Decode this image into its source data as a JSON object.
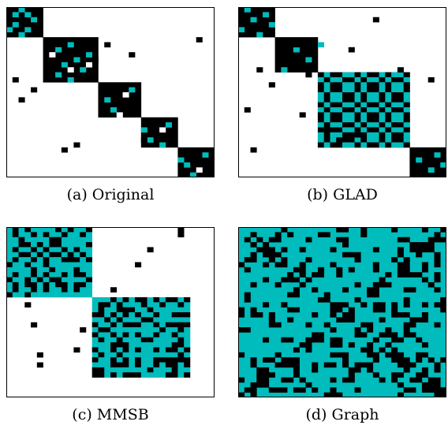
{
  "colors": {
    "filled": "#000000",
    "highlight": "#00bcbc",
    "empty": "#ffffff",
    "frame": "#000000"
  },
  "panels": [
    {
      "caption": "(a) Original",
      "cells": {
        "diag": [
          [
            0,
            6
          ],
          [
            6,
            15
          ],
          [
            15,
            22
          ],
          [
            22,
            28
          ],
          [
            28,
            34
          ]
        ],
        "cyan": [
          [
            1,
            1
          ],
          [
            3,
            1
          ],
          [
            4,
            0
          ],
          [
            1,
            3
          ],
          [
            4,
            3
          ],
          [
            2,
            4
          ],
          [
            0,
            2
          ],
          [
            5,
            2
          ],
          [
            8,
            8
          ],
          [
            11,
            9
          ],
          [
            13,
            8
          ],
          [
            10,
            11
          ],
          [
            9,
            13
          ],
          [
            12,
            12
          ],
          [
            14,
            10
          ],
          [
            7,
            10
          ],
          [
            18,
            16
          ],
          [
            20,
            17
          ],
          [
            16,
            20
          ],
          [
            24,
            22
          ],
          [
            26,
            23
          ],
          [
            23,
            26
          ],
          [
            27,
            25
          ],
          [
            30,
            28
          ],
          [
            31,
            29
          ],
          [
            33,
            30
          ],
          [
            29,
            32
          ]
        ],
        "white": [
          [
            9,
            7
          ],
          [
            12,
            10
          ],
          [
            11,
            13
          ],
          [
            17,
            19
          ],
          [
            21,
            18
          ],
          [
            24,
            25
          ],
          [
            32,
            31
          ]
        ],
        "black": [
          [
            14,
            1
          ],
          [
            18,
            2
          ],
          [
            16,
            4
          ],
          [
            28,
            9
          ],
          [
            27,
            11
          ],
          [
            10,
            14
          ],
          [
            7,
            16
          ],
          [
            9,
            20
          ],
          [
            26,
            22
          ],
          [
            25,
            24
          ],
          [
            30,
            30
          ],
          [
            6,
            31
          ]
        ]
      }
    },
    {
      "caption": "(b) GLAD",
      "cells": {
        "diag": [
          [
            0,
            6
          ],
          [
            6,
            13
          ],
          [
            13,
            28
          ],
          [
            28,
            34
          ]
        ],
        "cyan": [
          [
            0,
            1
          ],
          [
            2,
            2
          ],
          [
            4,
            0
          ],
          [
            1,
            4
          ],
          [
            5,
            3
          ],
          [
            3,
            5
          ],
          [
            8,
            9
          ],
          [
            10,
            11
          ],
          [
            12,
            7
          ],
          [
            7,
            13
          ],
          [
            30,
            29
          ],
          [
            32,
            31
          ],
          [
            29,
            32
          ],
          [
            31,
            33
          ]
        ],
        "checker": {
          "start": 13,
          "end": 28,
          "pattern": [
            1,
            0,
            1,
            1,
            0,
            0,
            1,
            0,
            1,
            1,
            0,
            1,
            0,
            0,
            1
          ]
        },
        "black": [
          [
            12,
            3
          ],
          [
            15,
            5
          ],
          [
            20,
            1
          ],
          [
            28,
            2
          ],
          [
            7,
            9
          ],
          [
            13,
            11
          ],
          [
            24,
            14
          ],
          [
            26,
            16
          ],
          [
            2,
            22
          ],
          [
            25,
            19
          ],
          [
            12,
            26
          ],
          [
            14,
            31
          ],
          [
            8,
            18
          ],
          [
            21,
            10
          ]
        ]
      }
    },
    {
      "caption": "(c) MMSB",
      "cells": {
        "blocks": [
          {
            "start": 0,
            "end": 14,
            "pattern": [
              0,
              1,
              0,
              0,
              1,
              0,
              1,
              0,
              0,
              1,
              0,
              1,
              1,
              0
            ]
          },
          {
            "start": 14,
            "end": 30,
            "pattern": [
              1,
              0,
              0,
              1,
              0,
              1,
              0,
              1,
              0,
              0,
              1,
              0,
              1,
              1,
              0,
              1
            ]
          }
        ],
        "black": [
          [
            15,
            3
          ],
          [
            19,
            4
          ],
          [
            25,
            5
          ],
          [
            27,
            5
          ],
          [
            7,
            21
          ],
          [
            12,
            17
          ],
          [
            4,
            23
          ],
          [
            0,
            28
          ],
          [
            1,
            28
          ],
          [
            20,
            12
          ],
          [
            24,
            11
          ]
        ]
      }
    },
    {
      "caption": "(d) Graph",
      "cells": {
        "fill": "cyan",
        "density": 0.24
      }
    }
  ]
}
